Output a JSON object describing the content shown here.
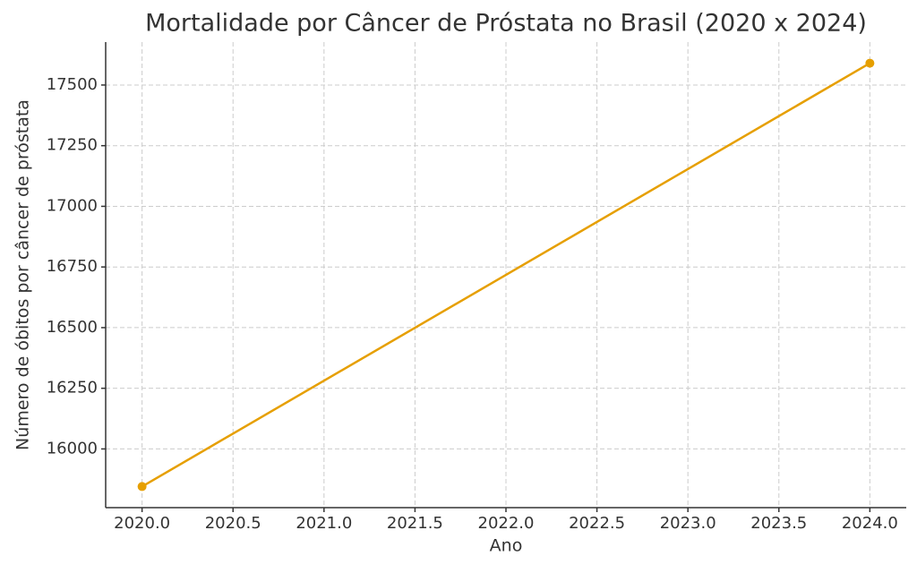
{
  "chart_data": {
    "type": "line",
    "title": "Mortalidade por Câncer de Próstata no Brasil (2020 x 2024)",
    "x_label": "Ano",
    "y_label": "Número de óbitos por câncer de próstata",
    "x": [
      2020,
      2024
    ],
    "series": [
      {
        "color": "#E69F00",
        "values": [
          15845,
          17590
        ]
      }
    ],
    "xlim": [
      2019.8,
      2024.2
    ],
    "xticks": [
      {
        "value": 2020,
        "label": "2020.0"
      },
      {
        "value": 2020.5,
        "label": "2020.5"
      },
      {
        "value": 2021,
        "label": "2021.0"
      },
      {
        "value": 2021.5,
        "label": "2021.5"
      },
      {
        "value": 2022,
        "label": "2022.0"
      },
      {
        "value": 2022.5,
        "label": "2022.5"
      },
      {
        "value": 2023,
        "label": "2023.0"
      },
      {
        "value": 2023.5,
        "label": "2023.5"
      },
      {
        "value": 2024,
        "label": "2024.0"
      }
    ],
    "ylim": [
      15758,
      17677
    ],
    "yticks": [
      16000,
      16250,
      16500,
      16750,
      17000,
      17250,
      17500
    ],
    "grid": true
  }
}
